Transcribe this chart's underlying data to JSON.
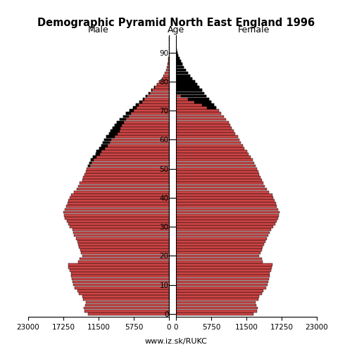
{
  "title": "Demographic Pyramid North East England 1996",
  "xlabel_left": "Male",
  "xlabel_right": "Female",
  "age_label": "Age",
  "source": "www.iz.sk/RUKC",
  "xlim": 23000,
  "xticks": [
    0,
    5750,
    11500,
    17250,
    23000
  ],
  "bar_color": "#CC4444",
  "bar_edge_color": "#000000",
  "bar_linewidth": 0.3,
  "background_color": "#ffffff",
  "ages": [
    0,
    1,
    2,
    3,
    4,
    5,
    6,
    7,
    8,
    9,
    10,
    11,
    12,
    13,
    14,
    15,
    16,
    17,
    18,
    19,
    20,
    21,
    22,
    23,
    24,
    25,
    26,
    27,
    28,
    29,
    30,
    31,
    32,
    33,
    34,
    35,
    36,
    37,
    38,
    39,
    40,
    41,
    42,
    43,
    44,
    45,
    46,
    47,
    48,
    49,
    50,
    51,
    52,
    53,
    54,
    55,
    56,
    57,
    58,
    59,
    60,
    61,
    62,
    63,
    64,
    65,
    66,
    67,
    68,
    69,
    70,
    71,
    72,
    73,
    74,
    75,
    76,
    77,
    78,
    79,
    80,
    81,
    82,
    83,
    84,
    85,
    86,
    87,
    88,
    89,
    90,
    91,
    92,
    93,
    94,
    95
  ],
  "male": [
    13200,
    13800,
    13900,
    13700,
    13600,
    14000,
    14200,
    14700,
    15000,
    15400,
    15600,
    15800,
    15900,
    16000,
    16000,
    16200,
    16400,
    16500,
    14800,
    14600,
    14200,
    14400,
    14500,
    14700,
    14800,
    15000,
    15200,
    15500,
    15600,
    15800,
    16200,
    16500,
    16700,
    17000,
    17100,
    17200,
    17000,
    16800,
    16600,
    16400,
    16200,
    16000,
    15500,
    15100,
    14800,
    14600,
    14200,
    14000,
    13800,
    13600,
    13400,
    13200,
    13000,
    12800,
    12400,
    12000,
    11800,
    11400,
    11000,
    10800,
    10600,
    10200,
    9800,
    9500,
    9200,
    8900,
    8500,
    8000,
    7500,
    7000,
    6400,
    5900,
    5400,
    4800,
    4300,
    3800,
    3300,
    2900,
    2400,
    2000,
    1600,
    1200,
    900,
    650,
    450,
    300,
    200,
    130,
    80,
    40,
    15,
    8,
    4,
    2,
    1,
    0
  ],
  "female": [
    12600,
    13200,
    13300,
    13100,
    13000,
    13400,
    13600,
    14000,
    14300,
    14700,
    14900,
    15100,
    15200,
    15300,
    15300,
    15500,
    15600,
    15700,
    14200,
    14000,
    13600,
    13800,
    14000,
    14200,
    14400,
    14600,
    14800,
    15100,
    15300,
    15500,
    15900,
    16200,
    16400,
    16700,
    16800,
    16900,
    16700,
    16500,
    16300,
    16100,
    15900,
    15700,
    15200,
    14800,
    14500,
    14300,
    14000,
    13800,
    13600,
    13400,
    13200,
    13000,
    12800,
    12500,
    12200,
    11900,
    11600,
    11200,
    10900,
    10600,
    10400,
    10100,
    9700,
    9400,
    9100,
    8900,
    8600,
    8200,
    7800,
    7400,
    7000,
    6600,
    6200,
    5800,
    5400,
    5000,
    4600,
    4200,
    3800,
    3400,
    3100,
    2700,
    2300,
    1900,
    1600,
    1300,
    1000,
    750,
    550,
    380,
    200,
    100,
    50,
    20,
    8,
    2
  ],
  "male_black": [
    0,
    0,
    0,
    0,
    0,
    0,
    0,
    0,
    0,
    0,
    0,
    0,
    0,
    0,
    0,
    0,
    0,
    0,
    0,
    0,
    0,
    0,
    0,
    0,
    0,
    0,
    0,
    0,
    0,
    0,
    0,
    0,
    0,
    0,
    0,
    0,
    0,
    0,
    0,
    0,
    0,
    0,
    0,
    0,
    0,
    0,
    0,
    0,
    0,
    0,
    0,
    300,
    400,
    500,
    600,
    700,
    800,
    900,
    1000,
    1100,
    1200,
    1300,
    1400,
    1400,
    1300,
    1200,
    1100,
    1000,
    900,
    800,
    700,
    600,
    500,
    400,
    300,
    200,
    150,
    100,
    60,
    30,
    10,
    0,
    0,
    0,
    0,
    0,
    0,
    0,
    0,
    0,
    0,
    0,
    0,
    0,
    0,
    0
  ],
  "female_black": [
    0,
    0,
    0,
    0,
    0,
    0,
    0,
    0,
    0,
    0,
    0,
    0,
    0,
    0,
    0,
    0,
    0,
    0,
    0,
    0,
    0,
    0,
    0,
    0,
    0,
    0,
    0,
    0,
    0,
    0,
    0,
    0,
    0,
    0,
    0,
    0,
    0,
    0,
    0,
    0,
    0,
    0,
    0,
    0,
    0,
    0,
    0,
    0,
    0,
    0,
    0,
    0,
    0,
    0,
    0,
    0,
    0,
    0,
    0,
    0,
    0,
    0,
    0,
    0,
    0,
    0,
    0,
    0,
    0,
    0,
    0,
    1500,
    2000,
    2800,
    3500,
    4200,
    4700,
    5100,
    5500,
    5800,
    5900,
    5700,
    5100,
    4600,
    3900,
    3100,
    2300,
    1600,
    1000,
    600,
    250,
    100,
    40,
    10,
    2,
    0
  ]
}
